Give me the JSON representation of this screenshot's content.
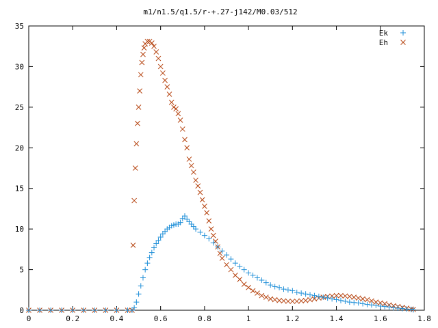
{
  "chart_data": {
    "type": "scatter",
    "title": "m1/n1.5/q1.5/r-+.27-j142/M0.03/512",
    "xlabel": "",
    "ylabel": "",
    "xlim": [
      0,
      1.8
    ],
    "ylim": [
      0,
      35
    ],
    "x_ticks": [
      "0",
      "0.2",
      "0.4",
      "0.6",
      "0.8",
      "1",
      "1.2",
      "1.4",
      "1.6",
      "1.8"
    ],
    "y_ticks": [
      "0",
      "5",
      "10",
      "15",
      "20",
      "25",
      "30",
      "35"
    ],
    "grid": false,
    "legend_position": "top-right",
    "series": [
      {
        "name": "Ek",
        "marker": "plus",
        "color": "#1f8fd8",
        "points": [
          [
            0.0,
            0
          ],
          [
            0.05,
            0
          ],
          [
            0.1,
            0
          ],
          [
            0.15,
            0
          ],
          [
            0.2,
            0
          ],
          [
            0.25,
            0
          ],
          [
            0.3,
            0
          ],
          [
            0.35,
            0
          ],
          [
            0.4,
            0
          ],
          [
            0.45,
            0
          ],
          [
            0.47,
            0
          ],
          [
            0.48,
            0.3
          ],
          [
            0.49,
            1.0
          ],
          [
            0.5,
            2.0
          ],
          [
            0.51,
            3.0
          ],
          [
            0.52,
            4.0
          ],
          [
            0.53,
            5.0
          ],
          [
            0.54,
            5.8
          ],
          [
            0.55,
            6.5
          ],
          [
            0.56,
            7.1
          ],
          [
            0.57,
            7.7
          ],
          [
            0.58,
            8.2
          ],
          [
            0.59,
            8.6
          ],
          [
            0.6,
            9.0
          ],
          [
            0.61,
            9.4
          ],
          [
            0.62,
            9.7
          ],
          [
            0.63,
            10.0
          ],
          [
            0.64,
            10.2
          ],
          [
            0.65,
            10.4
          ],
          [
            0.66,
            10.5
          ],
          [
            0.67,
            10.6
          ],
          [
            0.68,
            10.6
          ],
          [
            0.69,
            10.8
          ],
          [
            0.7,
            11.3
          ],
          [
            0.71,
            11.6
          ],
          [
            0.72,
            11.2
          ],
          [
            0.73,
            10.9
          ],
          [
            0.74,
            10.6
          ],
          [
            0.75,
            10.3
          ],
          [
            0.76,
            10.0
          ],
          [
            0.78,
            9.6
          ],
          [
            0.8,
            9.2
          ],
          [
            0.82,
            8.8
          ],
          [
            0.84,
            8.3
          ],
          [
            0.86,
            7.8
          ],
          [
            0.88,
            7.3
          ],
          [
            0.9,
            6.8
          ],
          [
            0.92,
            6.3
          ],
          [
            0.94,
            5.8
          ],
          [
            0.96,
            5.4
          ],
          [
            0.98,
            5.0
          ],
          [
            1.0,
            4.6
          ],
          [
            1.02,
            4.3
          ],
          [
            1.04,
            4.0
          ],
          [
            1.06,
            3.7
          ],
          [
            1.08,
            3.4
          ],
          [
            1.1,
            3.1
          ],
          [
            1.12,
            2.9
          ],
          [
            1.14,
            2.8
          ],
          [
            1.16,
            2.6
          ],
          [
            1.18,
            2.5
          ],
          [
            1.2,
            2.4
          ],
          [
            1.22,
            2.2
          ],
          [
            1.24,
            2.1
          ],
          [
            1.26,
            2.0
          ],
          [
            1.28,
            1.9
          ],
          [
            1.3,
            1.8
          ],
          [
            1.32,
            1.7
          ],
          [
            1.34,
            1.6
          ],
          [
            1.36,
            1.5
          ],
          [
            1.38,
            1.4
          ],
          [
            1.4,
            1.3
          ],
          [
            1.42,
            1.2
          ],
          [
            1.44,
            1.1
          ],
          [
            1.46,
            1.0
          ],
          [
            1.48,
            0.95
          ],
          [
            1.5,
            0.9
          ],
          [
            1.52,
            0.8
          ],
          [
            1.54,
            0.7
          ],
          [
            1.56,
            0.65
          ],
          [
            1.58,
            0.6
          ],
          [
            1.6,
            0.5
          ],
          [
            1.62,
            0.45
          ],
          [
            1.64,
            0.4
          ],
          [
            1.66,
            0.3
          ],
          [
            1.68,
            0.25
          ],
          [
            1.7,
            0.2
          ],
          [
            1.72,
            0.15
          ],
          [
            1.74,
            0.1
          ],
          [
            1.75,
            0.05
          ]
        ]
      },
      {
        "name": "Eh",
        "marker": "cross",
        "color": "#b5420e",
        "points": [
          [
            0.0,
            0
          ],
          [
            0.05,
            0
          ],
          [
            0.1,
            0
          ],
          [
            0.15,
            0
          ],
          [
            0.2,
            0
          ],
          [
            0.25,
            0
          ],
          [
            0.3,
            0
          ],
          [
            0.35,
            0
          ],
          [
            0.4,
            0
          ],
          [
            0.45,
            0
          ],
          [
            0.47,
            0
          ],
          [
            0.475,
            8.0
          ],
          [
            0.48,
            13.5
          ],
          [
            0.485,
            17.5
          ],
          [
            0.49,
            20.5
          ],
          [
            0.495,
            23.0
          ],
          [
            0.5,
            25.0
          ],
          [
            0.505,
            27.0
          ],
          [
            0.51,
            29.0
          ],
          [
            0.515,
            30.5
          ],
          [
            0.52,
            31.5
          ],
          [
            0.525,
            32.3
          ],
          [
            0.53,
            32.8
          ],
          [
            0.54,
            33.1
          ],
          [
            0.55,
            33.1
          ],
          [
            0.56,
            32.9
          ],
          [
            0.57,
            32.5
          ],
          [
            0.58,
            31.8
          ],
          [
            0.59,
            31.0
          ],
          [
            0.6,
            30.0
          ],
          [
            0.61,
            29.2
          ],
          [
            0.62,
            28.3
          ],
          [
            0.63,
            27.5
          ],
          [
            0.64,
            26.6
          ],
          [
            0.65,
            25.6
          ],
          [
            0.66,
            25.0
          ],
          [
            0.67,
            24.8
          ],
          [
            0.68,
            24.2
          ],
          [
            0.69,
            23.4
          ],
          [
            0.7,
            22.3
          ],
          [
            0.71,
            21.0
          ],
          [
            0.72,
            20.0
          ],
          [
            0.73,
            18.6
          ],
          [
            0.74,
            17.8
          ],
          [
            0.75,
            17.0
          ],
          [
            0.76,
            16.0
          ],
          [
            0.77,
            15.3
          ],
          [
            0.78,
            14.5
          ],
          [
            0.79,
            13.6
          ],
          [
            0.8,
            12.8
          ],
          [
            0.81,
            12.0
          ],
          [
            0.82,
            11.0
          ],
          [
            0.83,
            10.0
          ],
          [
            0.84,
            9.2
          ],
          [
            0.85,
            8.5
          ],
          [
            0.86,
            7.8
          ],
          [
            0.87,
            7.0
          ],
          [
            0.88,
            6.4
          ],
          [
            0.9,
            5.6
          ],
          [
            0.92,
            5.0
          ],
          [
            0.94,
            4.3
          ],
          [
            0.96,
            3.8
          ],
          [
            0.98,
            3.2
          ],
          [
            1.0,
            2.8
          ],
          [
            1.02,
            2.4
          ],
          [
            1.04,
            2.1
          ],
          [
            1.06,
            1.8
          ],
          [
            1.08,
            1.6
          ],
          [
            1.1,
            1.4
          ],
          [
            1.12,
            1.3
          ],
          [
            1.14,
            1.2
          ],
          [
            1.16,
            1.15
          ],
          [
            1.18,
            1.1
          ],
          [
            1.2,
            1.1
          ],
          [
            1.22,
            1.1
          ],
          [
            1.24,
            1.15
          ],
          [
            1.26,
            1.2
          ],
          [
            1.28,
            1.3
          ],
          [
            1.3,
            1.4
          ],
          [
            1.32,
            1.5
          ],
          [
            1.34,
            1.6
          ],
          [
            1.36,
            1.7
          ],
          [
            1.38,
            1.75
          ],
          [
            1.4,
            1.8
          ],
          [
            1.42,
            1.8
          ],
          [
            1.44,
            1.75
          ],
          [
            1.46,
            1.7
          ],
          [
            1.48,
            1.6
          ],
          [
            1.5,
            1.5
          ],
          [
            1.52,
            1.4
          ],
          [
            1.54,
            1.3
          ],
          [
            1.56,
            1.15
          ],
          [
            1.58,
            1.0
          ],
          [
            1.6,
            0.9
          ],
          [
            1.62,
            0.8
          ],
          [
            1.64,
            0.65
          ],
          [
            1.66,
            0.55
          ],
          [
            1.68,
            0.45
          ],
          [
            1.7,
            0.35
          ],
          [
            1.72,
            0.25
          ],
          [
            1.74,
            0.15
          ],
          [
            1.75,
            0.1
          ]
        ]
      }
    ]
  }
}
